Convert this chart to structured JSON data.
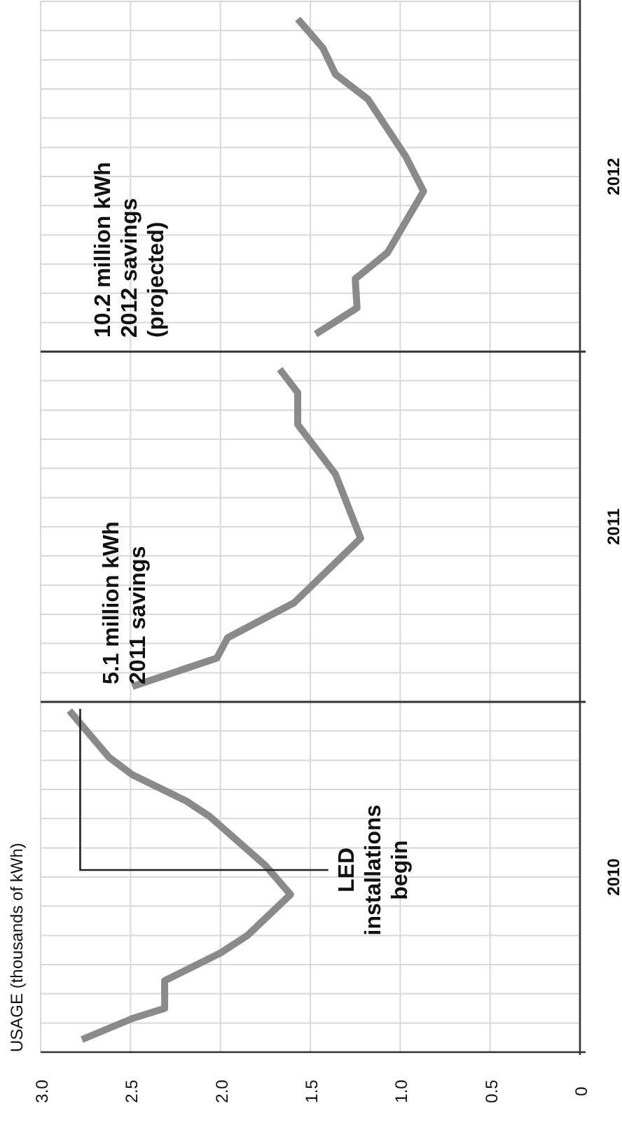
{
  "chart_data": {
    "type": "line",
    "xlim": [
      3,
      0
    ],
    "xticks": [
      {
        "value": 3,
        "label": "3.0"
      },
      2.5,
      {
        "value": 2,
        "label": "2.0"
      },
      1.5,
      {
        "value": 1,
        "label": "1.0"
      },
      0.5,
      0
    ],
    "ylim": [
      2010,
      2013
    ],
    "yticks": [
      {
        "value": 2010,
        "label": null
      },
      {
        "value": 2010.083,
        "label": null
      },
      {
        "value": 2010.167,
        "label": null
      },
      {
        "value": 2010.25,
        "label": null
      },
      {
        "value": 2010.333,
        "label": null
      },
      {
        "value": 2010.417,
        "label": null
      },
      {
        "value": 2010.5,
        "label": "2010"
      },
      {
        "value": 2010.583,
        "label": null
      },
      {
        "value": 2010.667,
        "label": null
      },
      {
        "value": 2010.75,
        "label": null
      },
      {
        "value": 2010.833,
        "label": null
      },
      {
        "value": 2010.917,
        "label": null
      },
      {
        "value": 2011.083,
        "label": null
      },
      {
        "value": 2011.167,
        "label": null
      },
      {
        "value": 2011.25,
        "label": null
      },
      {
        "value": 2011.333,
        "label": null
      },
      {
        "value": 2011.417,
        "label": null
      },
      {
        "value": 2011.5,
        "label": "2011"
      },
      {
        "value": 2011.583,
        "label": null
      },
      {
        "value": 2011.667,
        "label": null
      },
      {
        "value": 2011.75,
        "label": null
      },
      {
        "value": 2011.833,
        "label": null
      },
      {
        "value": 2011.917,
        "label": null
      },
      {
        "value": 2012.083,
        "label": null
      },
      {
        "value": 2012.167,
        "label": null
      },
      {
        "value": 2012.25,
        "label": null
      },
      {
        "value": 2012.333,
        "label": null
      },
      {
        "value": 2012.417,
        "label": null
      },
      {
        "value": 2012.5,
        "label": "2012"
      },
      {
        "value": 2012.583,
        "label": null
      },
      {
        "value": 2012.667,
        "label": null
      },
      {
        "value": 2012.75,
        "label": null
      },
      {
        "value": 2012.833,
        "label": null
      },
      {
        "value": 2012.917,
        "label": null
      },
      {
        "value": 2013,
        "label": null
      }
    ],
    "grid": true,
    "line_style": "solid",
    "series": [
      {
        "color": "#8a8a8a",
        "x": [
          2.77,
          2.49,
          2.31,
          2.31,
          2.0,
          1.85,
          1.61,
          1.75,
          2.06,
          2.19,
          2.49,
          2.62,
          2.84
        ],
        "values": [
          2010.036,
          2010.096,
          2010.125,
          2010.204,
          2010.283,
          2010.333,
          2010.45,
          2010.533,
          2010.673,
          2010.717,
          2010.792,
          2010.842,
          2010.975
        ]
      },
      {
        "color": "#8a8a8a",
        "x": [
          2.49,
          2.02,
          1.96,
          1.59,
          1.22,
          1.36,
          1.57,
          1.57,
          1.67
        ],
        "values": [
          2011.044,
          2011.125,
          2011.183,
          2011.283,
          2011.467,
          2011.65,
          2011.792,
          2011.883,
          2011.95
        ]
      },
      {
        "color": "#8a8a8a",
        "x": [
          1.47,
          1.24,
          1.25,
          1.07,
          0.87,
          0.97,
          1.18,
          1.36,
          1.43,
          1.57
        ],
        "values": [
          2012.05,
          2012.125,
          2012.208,
          2012.283,
          2012.458,
          2012.558,
          2012.721,
          2012.792,
          2012.867,
          2012.95
        ]
      }
    ],
    "ref_lines": [
      {
        "axis": "y",
        "value": 2011,
        "color": "#333333"
      },
      {
        "axis": "y",
        "value": 2012,
        "color": "#333333"
      }
    ],
    "annotations": [
      "USAGE (thousands of kWh)",
      "LED installations begin",
      "5.1 million kWh 2011 savings",
      "10.2 million kWh 2012 savings (projected)"
    ]
  }
}
